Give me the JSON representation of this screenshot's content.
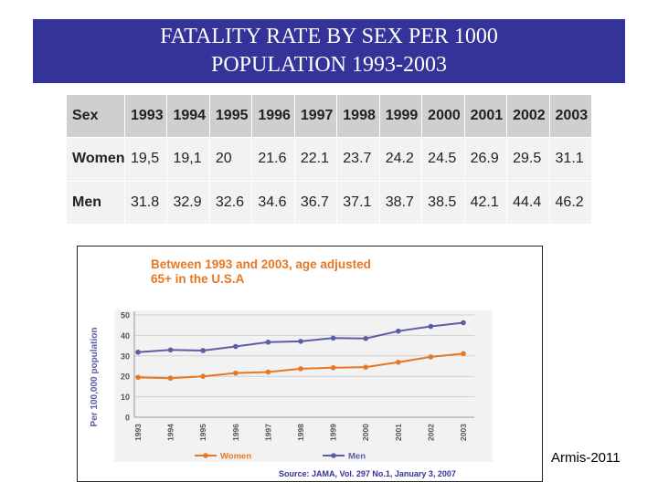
{
  "slide": {
    "title_line1": "FATALITY RATE BY SEX PER 1000",
    "title_line2": "POPULATION 1993-2003",
    "credit": "Armis-2011"
  },
  "table": {
    "header_label": "Sex",
    "years": [
      "1993",
      "1994",
      "1995",
      "1996",
      "1997",
      "1998",
      "1999",
      "2000",
      "2001",
      "2002",
      "2003"
    ],
    "rows": [
      {
        "label": "Women",
        "values": [
          "19,5",
          "19,1",
          "20",
          "21.6",
          "22.1",
          "23.7",
          "24.2",
          "24.5",
          "26.9",
          "29.5",
          "31.1"
        ]
      },
      {
        "label": "Men",
        "values": [
          "31.8",
          "32.9",
          "32.6",
          "34.6",
          "36.7",
          "37.1",
          "38.7",
          "38.5",
          "42.1",
          "44.4",
          "46.2"
        ]
      }
    ]
  },
  "chart_data": {
    "type": "line",
    "title": "Between 1993 and 2003, age adjusted 65+ in the U.S.A",
    "ylabel": "Per 100,000 population",
    "xlabel": "",
    "x": [
      "1993",
      "1994",
      "1995",
      "1996",
      "1997",
      "1998",
      "1999",
      "2000",
      "2001",
      "2002",
      "2003"
    ],
    "yticks": [
      "50",
      "40",
      "30",
      "20",
      "10",
      "0"
    ],
    "ylim": [
      0,
      50
    ],
    "grid": true,
    "legend_position": "bottom",
    "series": [
      {
        "name": "Women",
        "color": "#e87722",
        "values": [
          19.5,
          19.1,
          20,
          21.6,
          22.1,
          23.7,
          24.2,
          24.5,
          26.9,
          29.5,
          31.1
        ]
      },
      {
        "name": "Men",
        "color": "#5b5ea6",
        "values": [
          31.8,
          32.9,
          32.6,
          34.6,
          36.7,
          37.1,
          38.7,
          38.5,
          42.1,
          44.4,
          46.2
        ]
      }
    ],
    "source": "Source: JAMA, Vol. 297 No.1, January 3, 2007"
  }
}
